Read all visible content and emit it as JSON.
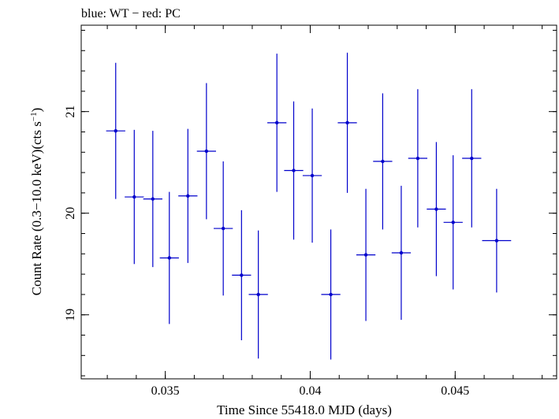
{
  "chart_data": {
    "type": "scatter",
    "title": "blue: WT − red: PC",
    "xlabel": "Time Since 55418.0 MJD (days)",
    "ylabel_main": "Count Rate (0.3−10.0 keV)(cts s",
    "ylabel_sup": "−1",
    "ylabel_close": ")",
    "xlim": [
      0.0321,
      0.0485
    ],
    "ylim": [
      18.37,
      21.85
    ],
    "xticks_major": [
      {
        "value": 0.035,
        "label": "0.035"
      },
      {
        "value": 0.04,
        "label": "0.04"
      },
      {
        "value": 0.045,
        "label": "0.045"
      }
    ],
    "yticks_major": [
      {
        "value": 19,
        "label": "19"
      },
      {
        "value": 20,
        "label": "20"
      },
      {
        "value": 21,
        "label": "21"
      }
    ],
    "xminor_step": 0.001,
    "yminor_step": 0.2,
    "series": [
      {
        "color": "#0000cc",
        "points": [
          {
            "x": 0.03329,
            "y": 20.81,
            "xerr": 0.00033,
            "yerr": 0.67
          },
          {
            "x": 0.03393,
            "y": 20.16,
            "xerr": 0.00033,
            "yerr": 0.66
          },
          {
            "x": 0.03457,
            "y": 20.14,
            "xerr": 0.00033,
            "yerr": 0.67
          },
          {
            "x": 0.03514,
            "y": 19.56,
            "xerr": 0.00033,
            "yerr": 0.65
          },
          {
            "x": 0.03578,
            "y": 20.17,
            "xerr": 0.00033,
            "yerr": 0.66
          },
          {
            "x": 0.03642,
            "y": 20.61,
            "xerr": 0.00033,
            "yerr": 0.67
          },
          {
            "x": 0.037,
            "y": 19.85,
            "xerr": 0.00033,
            "yerr": 0.66
          },
          {
            "x": 0.03763,
            "y": 19.39,
            "xerr": 0.00033,
            "yerr": 0.64
          },
          {
            "x": 0.03821,
            "y": 19.2,
            "xerr": 0.00033,
            "yerr": 0.63
          },
          {
            "x": 0.03885,
            "y": 20.89,
            "xerr": 0.00033,
            "yerr": 0.68
          },
          {
            "x": 0.03943,
            "y": 20.42,
            "xerr": 0.00033,
            "yerr": 0.68
          },
          {
            "x": 0.04007,
            "y": 20.37,
            "xerr": 0.00033,
            "yerr": 0.66
          },
          {
            "x": 0.04071,
            "y": 19.2,
            "xerr": 0.00033,
            "yerr": 0.64
          },
          {
            "x": 0.04128,
            "y": 20.89,
            "xerr": 0.00033,
            "yerr": 0.69
          },
          {
            "x": 0.04192,
            "y": 19.59,
            "xerr": 0.00033,
            "yerr": 0.65
          },
          {
            "x": 0.0425,
            "y": 20.51,
            "xerr": 0.00033,
            "yerr": 0.67
          },
          {
            "x": 0.04314,
            "y": 19.61,
            "xerr": 0.00033,
            "yerr": 0.66
          },
          {
            "x": 0.04371,
            "y": 20.54,
            "xerr": 0.00033,
            "yerr": 0.68
          },
          {
            "x": 0.04435,
            "y": 20.04,
            "xerr": 0.00033,
            "yerr": 0.66
          },
          {
            "x": 0.04493,
            "y": 19.91,
            "xerr": 0.00033,
            "yerr": 0.66
          },
          {
            "x": 0.04557,
            "y": 20.54,
            "xerr": 0.00033,
            "yerr": 0.68
          },
          {
            "x": 0.04643,
            "y": 19.73,
            "xerr": 0.0005,
            "yerr": 0.51
          }
        ]
      }
    ]
  }
}
